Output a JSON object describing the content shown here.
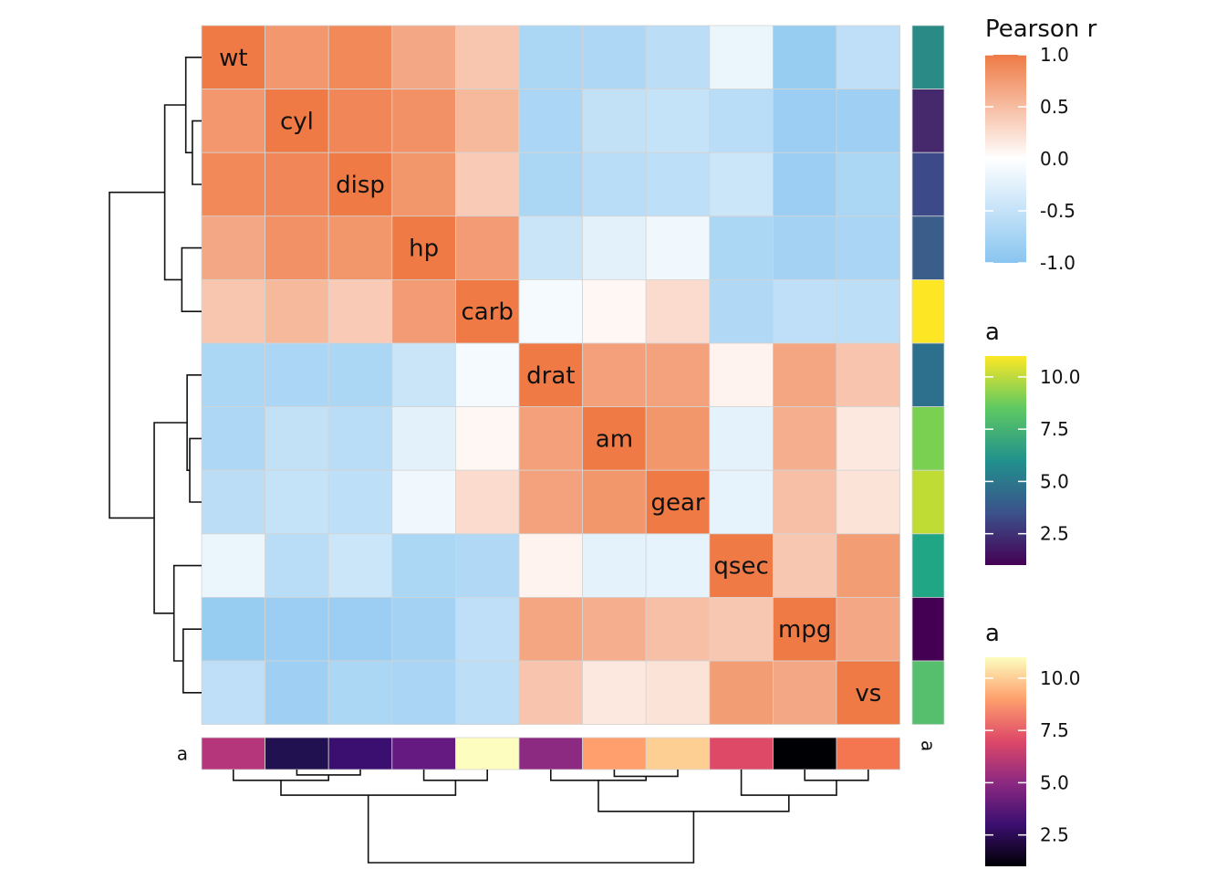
{
  "chart_data": {
    "type": "heatmap",
    "title": "",
    "variables": [
      "wt",
      "cyl",
      "disp",
      "hp",
      "carb",
      "drat",
      "am",
      "gear",
      "qsec",
      "mpg",
      "vs"
    ],
    "matrix": [
      [
        1.0,
        0.78,
        0.89,
        0.66,
        0.43,
        -0.71,
        -0.69,
        -0.58,
        -0.17,
        -0.87,
        -0.55
      ],
      [
        0.78,
        1.0,
        0.9,
        0.83,
        0.53,
        -0.7,
        -0.52,
        -0.49,
        -0.59,
        -0.85,
        -0.81
      ],
      [
        0.89,
        0.9,
        1.0,
        0.79,
        0.39,
        -0.71,
        -0.59,
        -0.56,
        -0.43,
        -0.85,
        -0.71
      ],
      [
        0.66,
        0.83,
        0.79,
        1.0,
        0.75,
        -0.45,
        -0.24,
        -0.13,
        -0.71,
        -0.78,
        -0.72
      ],
      [
        0.43,
        0.53,
        0.39,
        0.75,
        1.0,
        -0.09,
        0.06,
        0.27,
        -0.66,
        -0.55,
        -0.57
      ],
      [
        -0.71,
        -0.7,
        -0.71,
        -0.45,
        -0.09,
        1.0,
        0.71,
        0.7,
        0.09,
        0.68,
        0.44
      ],
      [
        -0.69,
        -0.52,
        -0.59,
        -0.24,
        0.06,
        0.71,
        1.0,
        0.79,
        -0.23,
        0.6,
        0.17
      ],
      [
        -0.58,
        -0.49,
        -0.56,
        -0.13,
        0.27,
        0.7,
        0.79,
        1.0,
        -0.21,
        0.48,
        0.21
      ],
      [
        -0.17,
        -0.59,
        -0.43,
        -0.71,
        -0.66,
        0.09,
        -0.23,
        -0.21,
        1.0,
        0.42,
        0.74
      ],
      [
        -0.87,
        -0.85,
        -0.85,
        -0.78,
        -0.55,
        0.68,
        0.6,
        0.48,
        0.42,
        1.0,
        0.66
      ],
      [
        -0.55,
        -0.81,
        -0.71,
        -0.72,
        -0.57,
        0.44,
        0.17,
        0.21,
        0.74,
        0.66,
        1.0
      ]
    ],
    "row_annotation": {
      "label": "a",
      "values": [
        6,
        2,
        3,
        4,
        11,
        5,
        8,
        9,
        7,
        1,
        8
      ],
      "colors": [
        "#2a8a86",
        "#46296c",
        "#3d4a89",
        "#3a5d8a",
        "#fde725",
        "#2d708e",
        "#7ad151",
        "#bfdc35",
        "#21a685",
        "#440154",
        "#56bf6e"
      ]
    },
    "col_annotation": {
      "label": "a",
      "values": [
        6,
        2,
        3,
        4,
        11,
        5,
        8,
        9,
        7,
        1,
        8
      ],
      "colors": [
        "#b5367a",
        "#221150",
        "#3b0f70",
        "#641a80",
        "#fcfdbf",
        "#8c2981",
        "#fe9f6d",
        "#fecf92",
        "#de4968",
        "#000004",
        "#f37651"
      ]
    },
    "legends": [
      {
        "title": "Pearson r",
        "ticks": [
          "1.0",
          "0.5",
          "0.0",
          "-0.5",
          "-1.0"
        ],
        "range": [
          -1,
          1
        ],
        "colors": [
          "#89c5f0",
          "#ffffff",
          "#ef7a45"
        ]
      },
      {
        "title": "a",
        "ticks": [
          "10.0",
          "7.5",
          "5.0",
          "2.5"
        ],
        "range": [
          1,
          11
        ],
        "colors": [
          "#440154",
          "#3b528b",
          "#21918c",
          "#5ec962",
          "#fde725"
        ]
      },
      {
        "title": "a",
        "ticks": [
          "10.0",
          "7.5",
          "5.0",
          "2.5"
        ],
        "range": [
          1,
          11
        ],
        "colors": [
          "#000004",
          "#3b0f70",
          "#8c2981",
          "#de4968",
          "#fe9f6d",
          "#fcfdbf"
        ]
      }
    ],
    "row_dendrogram": [
      {
        "a": 1,
        "b": 2,
        "h": 0.07
      },
      {
        "a": 0,
        "b": 11,
        "h": 0.12
      },
      {
        "a": 3,
        "b": 4,
        "h": 0.15
      },
      {
        "a": 12,
        "b": 13,
        "h": 0.28
      },
      {
        "a": 6,
        "b": 7,
        "h": 0.09
      },
      {
        "a": 5,
        "b": 15,
        "h": 0.11
      },
      {
        "a": 9,
        "b": 10,
        "h": 0.14
      },
      {
        "a": 8,
        "b": 17,
        "h": 0.21
      },
      {
        "a": 16,
        "b": 18,
        "h": 0.36
      },
      {
        "a": 14,
        "b": 19,
        "h": 0.7
      }
    ],
    "col_dendrogram": [
      {
        "a": 1,
        "b": 2,
        "h": 0.04
      },
      {
        "a": 0,
        "b": 11,
        "h": 0.08
      },
      {
        "a": 3,
        "b": 4,
        "h": 0.08
      },
      {
        "a": 12,
        "b": 13,
        "h": 0.19
      },
      {
        "a": 6,
        "b": 7,
        "h": 0.05
      },
      {
        "a": 5,
        "b": 15,
        "h": 0.08
      },
      {
        "a": 9,
        "b": 10,
        "h": 0.08
      },
      {
        "a": 8,
        "b": 17,
        "h": 0.19
      },
      {
        "a": 16,
        "b": 18,
        "h": 0.31
      },
      {
        "a": 14,
        "b": 19,
        "h": 0.69
      }
    ]
  }
}
